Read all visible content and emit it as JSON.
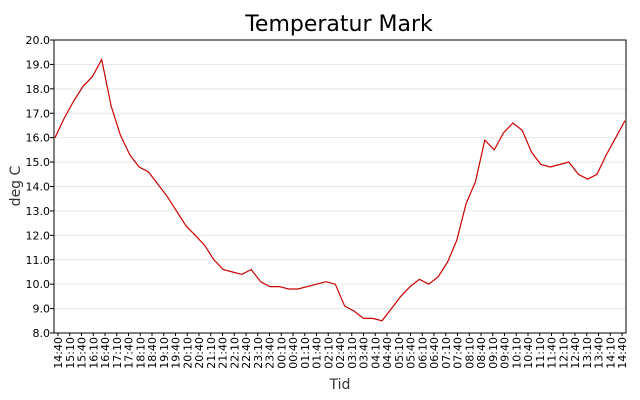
{
  "chart_data": {
    "type": "line",
    "title": "Temperatur Mark",
    "xlabel": "Tid",
    "ylabel": "deg C",
    "ylim": [
      8.0,
      20.0
    ],
    "yticks": [
      "8.0",
      "9.0",
      "10.0",
      "11.0",
      "12.0",
      "13.0",
      "14.0",
      "15.0",
      "16.0",
      "17.0",
      "18.0",
      "19.0",
      "20.0"
    ],
    "xticks": [
      "14:40",
      "15:10",
      "15:40",
      "16:10",
      "16:40",
      "17:10",
      "17:40",
      "18:10",
      "18:40",
      "19:10",
      "19:40",
      "20:10",
      "20:40",
      "21:10",
      "21:40",
      "22:10",
      "22:40",
      "23:10",
      "23:40",
      "00:10",
      "00:40",
      "01:10",
      "01:40",
      "02:10",
      "02:40",
      "03:10",
      "03:40",
      "04:10",
      "04:40",
      "05:10",
      "05:40",
      "06:10",
      "06:40",
      "07:10",
      "07:40",
      "08:10",
      "08:40",
      "09:10",
      "09:40",
      "10:10",
      "10:40",
      "11:10",
      "11:40",
      "12:10",
      "12:40",
      "13:10",
      "13:40",
      "14:10",
      "14:40"
    ],
    "grid": true,
    "line_color": "#cc0000",
    "series": [
      {
        "values": [
          16.0,
          16.8,
          17.5,
          18.1,
          18.5,
          19.2,
          17.3,
          16.1,
          15.3,
          14.8,
          14.6,
          14.1,
          13.6,
          13.0,
          12.4,
          12.0,
          11.6,
          11.0,
          10.6,
          10.5,
          10.4,
          10.6,
          10.1,
          9.9,
          9.9,
          9.8,
          9.8,
          9.9,
          10.0,
          10.1,
          10.0,
          9.1,
          8.9,
          8.6,
          8.6,
          8.5,
          9.0,
          9.5,
          9.9,
          10.2,
          10.0,
          10.3,
          10.9,
          11.8,
          13.3,
          14.2,
          15.9,
          15.5,
          16.2,
          16.6,
          16.3,
          15.4,
          14.9,
          14.8,
          14.9,
          15.0,
          14.5,
          14.3,
          14.5,
          15.3,
          16.0,
          16.7
        ]
      }
    ]
  }
}
